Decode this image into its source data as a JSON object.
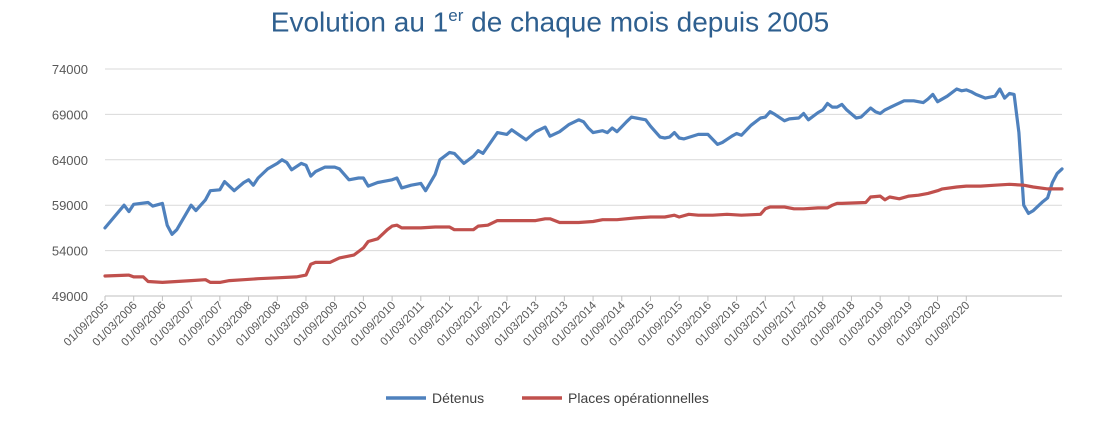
{
  "chart_data": {
    "type": "line",
    "title_main_before": "Evolution au 1",
    "title_sup": "er",
    "title_main_after": " de chaque mois depuis 2005",
    "ylim": [
      49000,
      74000
    ],
    "y_ticks": [
      "49000",
      "54000",
      "59000",
      "64000",
      "69000",
      "74000"
    ],
    "x_tick_labels": [
      "01/09/2005",
      "01/03/2006",
      "01/09/2006",
      "01/03/2007",
      "01/09/2007",
      "01/03/2008",
      "01/09/2008",
      "01/03/2009",
      "01/09/2009",
      "01/03/2010",
      "01/09/2010",
      "01/03/2011",
      "01/09/2011",
      "01/03/2012",
      "01/09/2012",
      "01/03/2013",
      "01/09/2013",
      "01/03/2014",
      "01/09/2014",
      "01/03/2015",
      "01/09/2015",
      "01/03/2016",
      "01/09/2016",
      "01/03/2017",
      "01/09/2017",
      "01/03/2018",
      "01/09/2018",
      "01/03/2019",
      "01/09/2019",
      "01/03/2020",
      "01/09/2020"
    ],
    "grid": true,
    "legend_position": "bottom",
    "series": [
      {
        "name": "Détenus",
        "color": "#4F81BD",
        "points": [
          [
            "2005-09",
            56500
          ],
          [
            "2006-01",
            59000
          ],
          [
            "2006-02",
            58300
          ],
          [
            "2006-03",
            59100
          ],
          [
            "2006-06",
            59300
          ],
          [
            "2006-07",
            58900
          ],
          [
            "2006-09",
            59200
          ],
          [
            "2006-10",
            56800
          ],
          [
            "2006-11",
            55800
          ],
          [
            "2006-12",
            56300
          ],
          [
            "2007-03",
            59000
          ],
          [
            "2007-04",
            58400
          ],
          [
            "2007-06",
            59600
          ],
          [
            "2007-07",
            60600
          ],
          [
            "2007-09",
            60700
          ],
          [
            "2007-10",
            61600
          ],
          [
            "2007-12",
            60600
          ],
          [
            "2008-02",
            61500
          ],
          [
            "2008-03",
            61800
          ],
          [
            "2008-04",
            61200
          ],
          [
            "2008-05",
            62000
          ],
          [
            "2008-07",
            63000
          ],
          [
            "2008-09",
            63600
          ],
          [
            "2008-10",
            64000
          ],
          [
            "2008-11",
            63700
          ],
          [
            "2008-12",
            62900
          ],
          [
            "2009-02",
            63600
          ],
          [
            "2009-03",
            63400
          ],
          [
            "2009-04",
            62200
          ],
          [
            "2009-05",
            62700
          ],
          [
            "2009-07",
            63200
          ],
          [
            "2009-09",
            63200
          ],
          [
            "2009-10",
            63000
          ],
          [
            "2009-12",
            61800
          ],
          [
            "2010-02",
            62000
          ],
          [
            "2010-03",
            62000
          ],
          [
            "2010-04",
            61100
          ],
          [
            "2010-06",
            61500
          ],
          [
            "2010-09",
            61800
          ],
          [
            "2010-10",
            62000
          ],
          [
            "2010-11",
            60900
          ],
          [
            "2011-01",
            61200
          ],
          [
            "2011-03",
            61400
          ],
          [
            "2011-04",
            60600
          ],
          [
            "2011-06",
            62400
          ],
          [
            "2011-07",
            64000
          ],
          [
            "2011-09",
            64800
          ],
          [
            "2011-10",
            64700
          ],
          [
            "2011-12",
            63600
          ],
          [
            "2012-02",
            64400
          ],
          [
            "2012-03",
            65000
          ],
          [
            "2012-04",
            64700
          ],
          [
            "2012-07",
            67000
          ],
          [
            "2012-09",
            66800
          ],
          [
            "2012-10",
            67300
          ],
          [
            "2013-01",
            66200
          ],
          [
            "2013-03",
            67100
          ],
          [
            "2013-05",
            67600
          ],
          [
            "2013-06",
            66600
          ],
          [
            "2013-08",
            67100
          ],
          [
            "2013-10",
            67900
          ],
          [
            "2013-12",
            68400
          ],
          [
            "2014-01",
            68200
          ],
          [
            "2014-02",
            67500
          ],
          [
            "2014-03",
            67000
          ],
          [
            "2014-05",
            67200
          ],
          [
            "2014-06",
            67000
          ],
          [
            "2014-07",
            67500
          ],
          [
            "2014-08",
            67100
          ],
          [
            "2014-10",
            68200
          ],
          [
            "2014-11",
            68700
          ],
          [
            "2014-12",
            68600
          ],
          [
            "2015-02",
            68400
          ],
          [
            "2015-03",
            67700
          ],
          [
            "2015-05",
            66500
          ],
          [
            "2015-06",
            66400
          ],
          [
            "2015-07",
            66500
          ],
          [
            "2015-08",
            67000
          ],
          [
            "2015-09",
            66400
          ],
          [
            "2015-10",
            66300
          ],
          [
            "2016-01",
            66800
          ],
          [
            "2016-03",
            66800
          ],
          [
            "2016-05",
            65700
          ],
          [
            "2016-06",
            65900
          ],
          [
            "2016-08",
            66600
          ],
          [
            "2016-09",
            66900
          ],
          [
            "2016-10",
            66700
          ],
          [
            "2016-12",
            67800
          ],
          [
            "2017-02",
            68600
          ],
          [
            "2017-03",
            68700
          ],
          [
            "2017-04",
            69300
          ],
          [
            "2017-05",
            69000
          ],
          [
            "2017-07",
            68300
          ],
          [
            "2017-08",
            68500
          ],
          [
            "2017-10",
            68600
          ],
          [
            "2017-11",
            69100
          ],
          [
            "2017-12",
            68400
          ],
          [
            "2018-02",
            69200
          ],
          [
            "2018-03",
            69500
          ],
          [
            "2018-04",
            70200
          ],
          [
            "2018-05",
            69800
          ],
          [
            "2018-06",
            69800
          ],
          [
            "2018-07",
            70100
          ],
          [
            "2018-08",
            69500
          ],
          [
            "2018-10",
            68600
          ],
          [
            "2018-11",
            68700
          ],
          [
            "2019-01",
            69700
          ],
          [
            "2019-02",
            69300
          ],
          [
            "2019-03",
            69100
          ],
          [
            "2019-04",
            69500
          ],
          [
            "2019-06",
            70000
          ],
          [
            "2019-08",
            70500
          ],
          [
            "2019-10",
            70500
          ],
          [
            "2019-12",
            70300
          ],
          [
            "2020-01",
            70700
          ],
          [
            "2020-02",
            71200
          ],
          [
            "2020-03",
            70400
          ],
          [
            "2020-05",
            71000
          ],
          [
            "2020-07",
            71800
          ],
          [
            "2020-08",
            71600
          ],
          [
            "2020-09",
            71700
          ],
          [
            "2020-10",
            71500
          ],
          [
            "2020-11",
            71200
          ],
          [
            "2021-01",
            70800
          ],
          [
            "2021-03",
            71000
          ],
          [
            "2021-04",
            71800
          ],
          [
            "2021-05",
            70800
          ],
          [
            "2021-06",
            71300
          ],
          [
            "2021-07",
            71200
          ],
          [
            "2021-08",
            67000
          ],
          [
            "2021-09",
            59000
          ],
          [
            "2021-10",
            58100
          ],
          [
            "2021-11",
            58400
          ],
          [
            "2021-12",
            58900
          ],
          [
            "2022-01",
            59400
          ],
          [
            "2022-02",
            59800
          ],
          [
            "2022-03",
            61500
          ],
          [
            "2022-04",
            62500
          ],
          [
            "2022-05",
            63000
          ]
        ]
      },
      {
        "name": "Places opérationnelles",
        "color": "#C0504D",
        "points": [
          [
            "2005-09",
            51200
          ],
          [
            "2006-02",
            51300
          ],
          [
            "2006-03",
            51100
          ],
          [
            "2006-05",
            51100
          ],
          [
            "2006-06",
            50600
          ],
          [
            "2006-09",
            50500
          ],
          [
            "2006-12",
            50600
          ],
          [
            "2007-03",
            50700
          ],
          [
            "2007-06",
            50800
          ],
          [
            "2007-07",
            50500
          ],
          [
            "2007-09",
            50500
          ],
          [
            "2007-11",
            50700
          ],
          [
            "2008-02",
            50800
          ],
          [
            "2008-05",
            50900
          ],
          [
            "2008-09",
            51000
          ],
          [
            "2009-01",
            51100
          ],
          [
            "2009-03",
            51300
          ],
          [
            "2009-04",
            52500
          ],
          [
            "2009-05",
            52700
          ],
          [
            "2009-08",
            52700
          ],
          [
            "2009-10",
            53200
          ],
          [
            "2010-01",
            53500
          ],
          [
            "2010-03",
            54300
          ],
          [
            "2010-04",
            55000
          ],
          [
            "2010-06",
            55300
          ],
          [
            "2010-08",
            56300
          ],
          [
            "2010-09",
            56700
          ],
          [
            "2010-10",
            56800
          ],
          [
            "2010-11",
            56500
          ],
          [
            "2011-03",
            56500
          ],
          [
            "2011-06",
            56600
          ],
          [
            "2011-09",
            56600
          ],
          [
            "2011-10",
            56300
          ],
          [
            "2012-02",
            56300
          ],
          [
            "2012-03",
            56700
          ],
          [
            "2012-05",
            56800
          ],
          [
            "2012-07",
            57300
          ],
          [
            "2012-10",
            57300
          ],
          [
            "2013-03",
            57300
          ],
          [
            "2013-05",
            57500
          ],
          [
            "2013-06",
            57500
          ],
          [
            "2013-08",
            57100
          ],
          [
            "2013-12",
            57100
          ],
          [
            "2014-03",
            57200
          ],
          [
            "2014-05",
            57400
          ],
          [
            "2014-08",
            57400
          ],
          [
            "2014-12",
            57600
          ],
          [
            "2015-03",
            57700
          ],
          [
            "2015-06",
            57700
          ],
          [
            "2015-08",
            57900
          ],
          [
            "2015-09",
            57700
          ],
          [
            "2015-11",
            58000
          ],
          [
            "2016-01",
            57900
          ],
          [
            "2016-04",
            57900
          ],
          [
            "2016-07",
            58000
          ],
          [
            "2016-10",
            57900
          ],
          [
            "2017-02",
            58000
          ],
          [
            "2017-03",
            58600
          ],
          [
            "2017-04",
            58800
          ],
          [
            "2017-07",
            58800
          ],
          [
            "2017-09",
            58600
          ],
          [
            "2017-11",
            58600
          ],
          [
            "2018-02",
            58700
          ],
          [
            "2018-04",
            58700
          ],
          [
            "2018-05",
            59000
          ],
          [
            "2018-06",
            59200
          ],
          [
            "2018-07",
            59200
          ],
          [
            "2018-12",
            59300
          ],
          [
            "2019-01",
            59900
          ],
          [
            "2019-03",
            60000
          ],
          [
            "2019-04",
            59600
          ],
          [
            "2019-05",
            59900
          ],
          [
            "2019-07",
            59700
          ],
          [
            "2019-09",
            60000
          ],
          [
            "2019-11",
            60100
          ],
          [
            "2020-01",
            60300
          ],
          [
            "2020-03",
            60600
          ],
          [
            "2020-04",
            60800
          ],
          [
            "2020-07",
            61000
          ],
          [
            "2020-09",
            61100
          ],
          [
            "2020-12",
            61100
          ],
          [
            "2021-03",
            61200
          ],
          [
            "2021-06",
            61300
          ],
          [
            "2021-09",
            61200
          ],
          [
            "2021-11",
            61000
          ],
          [
            "2022-02",
            60800
          ],
          [
            "2022-05",
            60800
          ]
        ]
      }
    ]
  }
}
